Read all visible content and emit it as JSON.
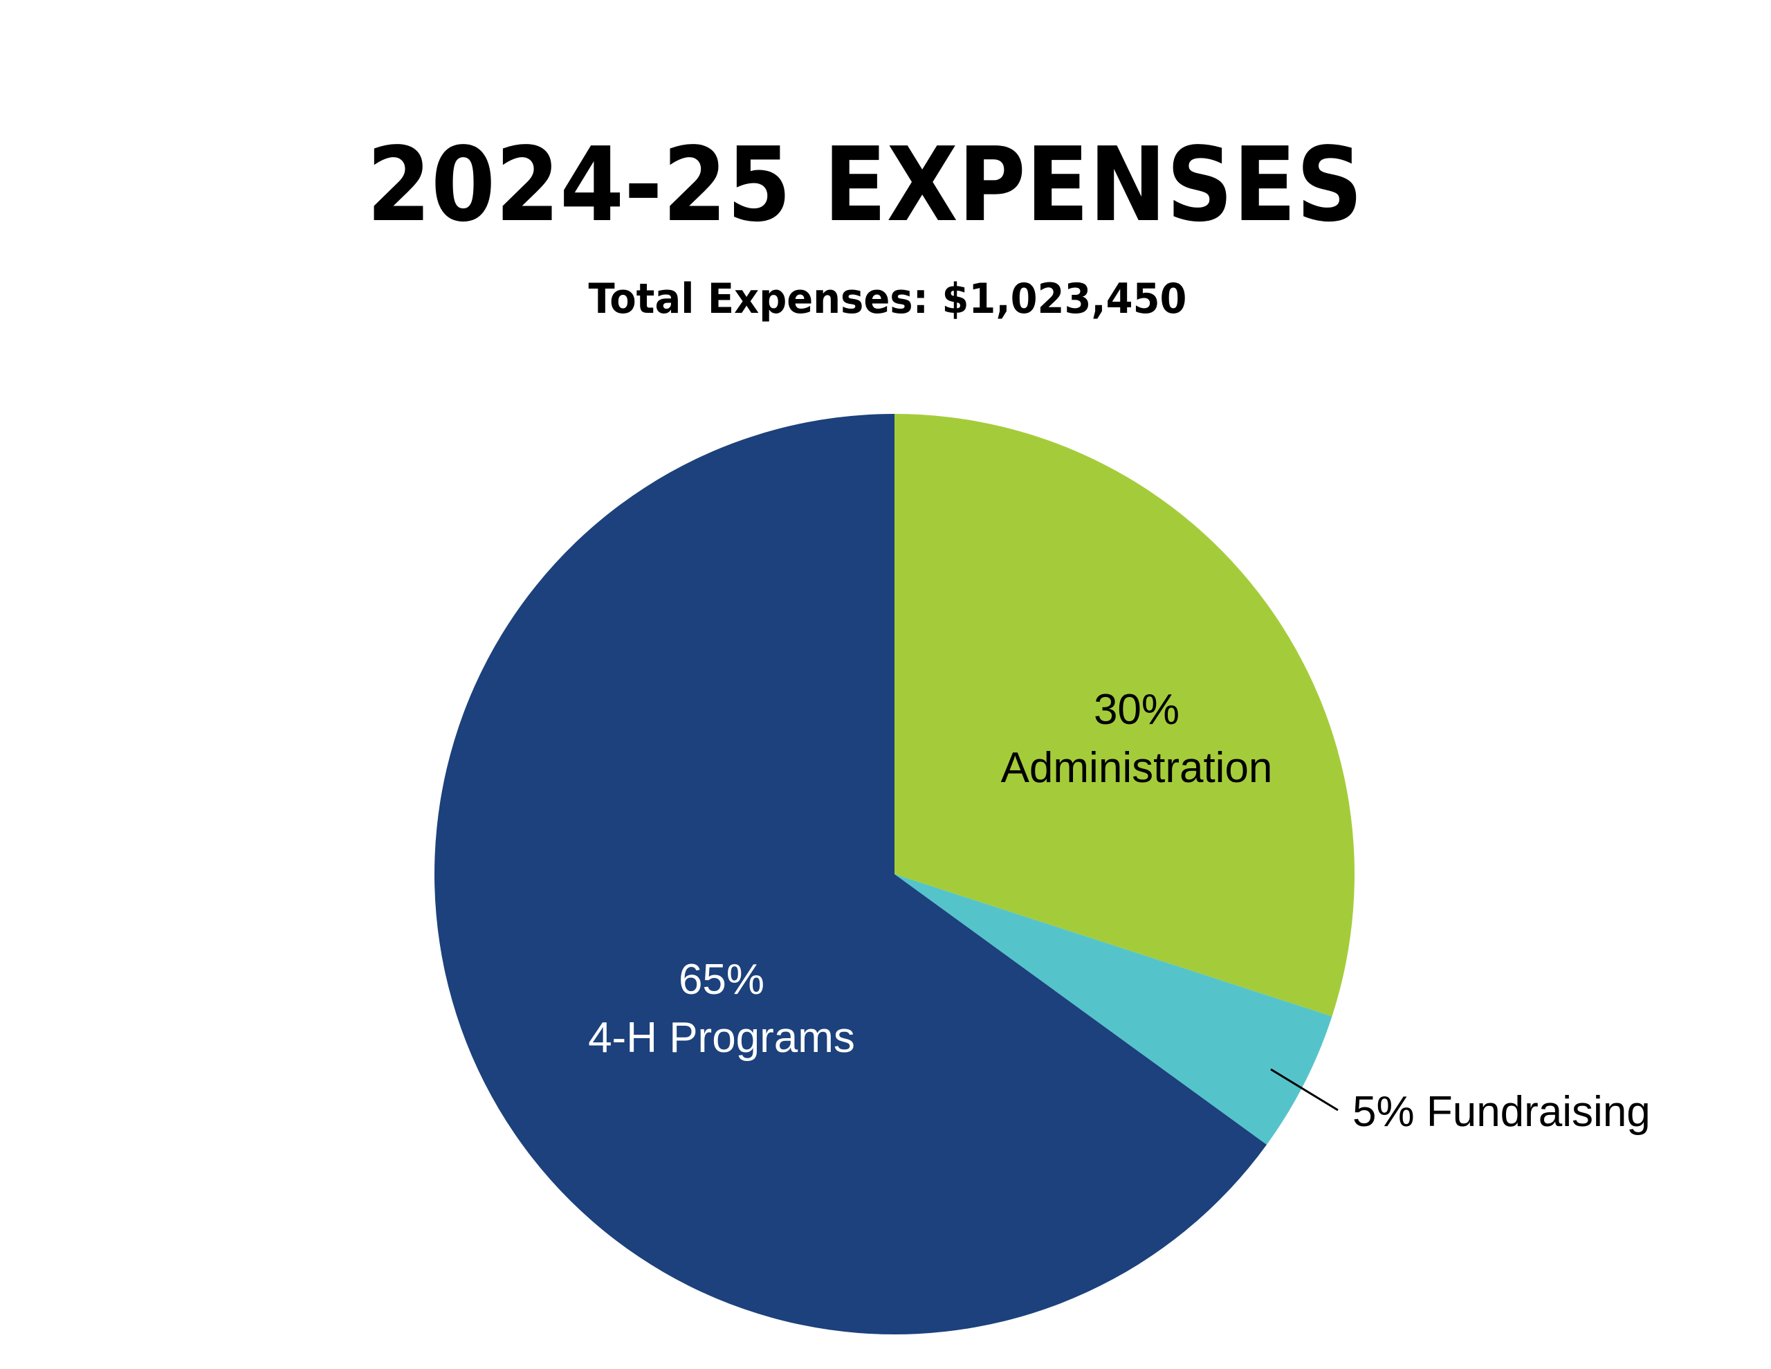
{
  "chart_data": {
    "type": "pie",
    "title": "2024-25 EXPENSES",
    "subtitle": "Total Expenses: $1,023,450",
    "slices": [
      {
        "label": "Administration",
        "value": 30,
        "display": "30%",
        "color": "#a4cc3a",
        "label_color": "#000000"
      },
      {
        "label": "Fundraising",
        "value": 5,
        "display": "5% Fundraising",
        "color": "#55c4ca",
        "label_color": "#000000"
      },
      {
        "label": "4-H Programs",
        "value": 65,
        "display": "65%",
        "color": "#1c417c",
        "label_color": "#ffffff"
      }
    ]
  },
  "text": {
    "admin_pct": "30%",
    "admin_name": "Administration",
    "programs_pct": "65%",
    "programs_name": "4-H Programs",
    "fundraising_label": "5% Fundraising"
  }
}
